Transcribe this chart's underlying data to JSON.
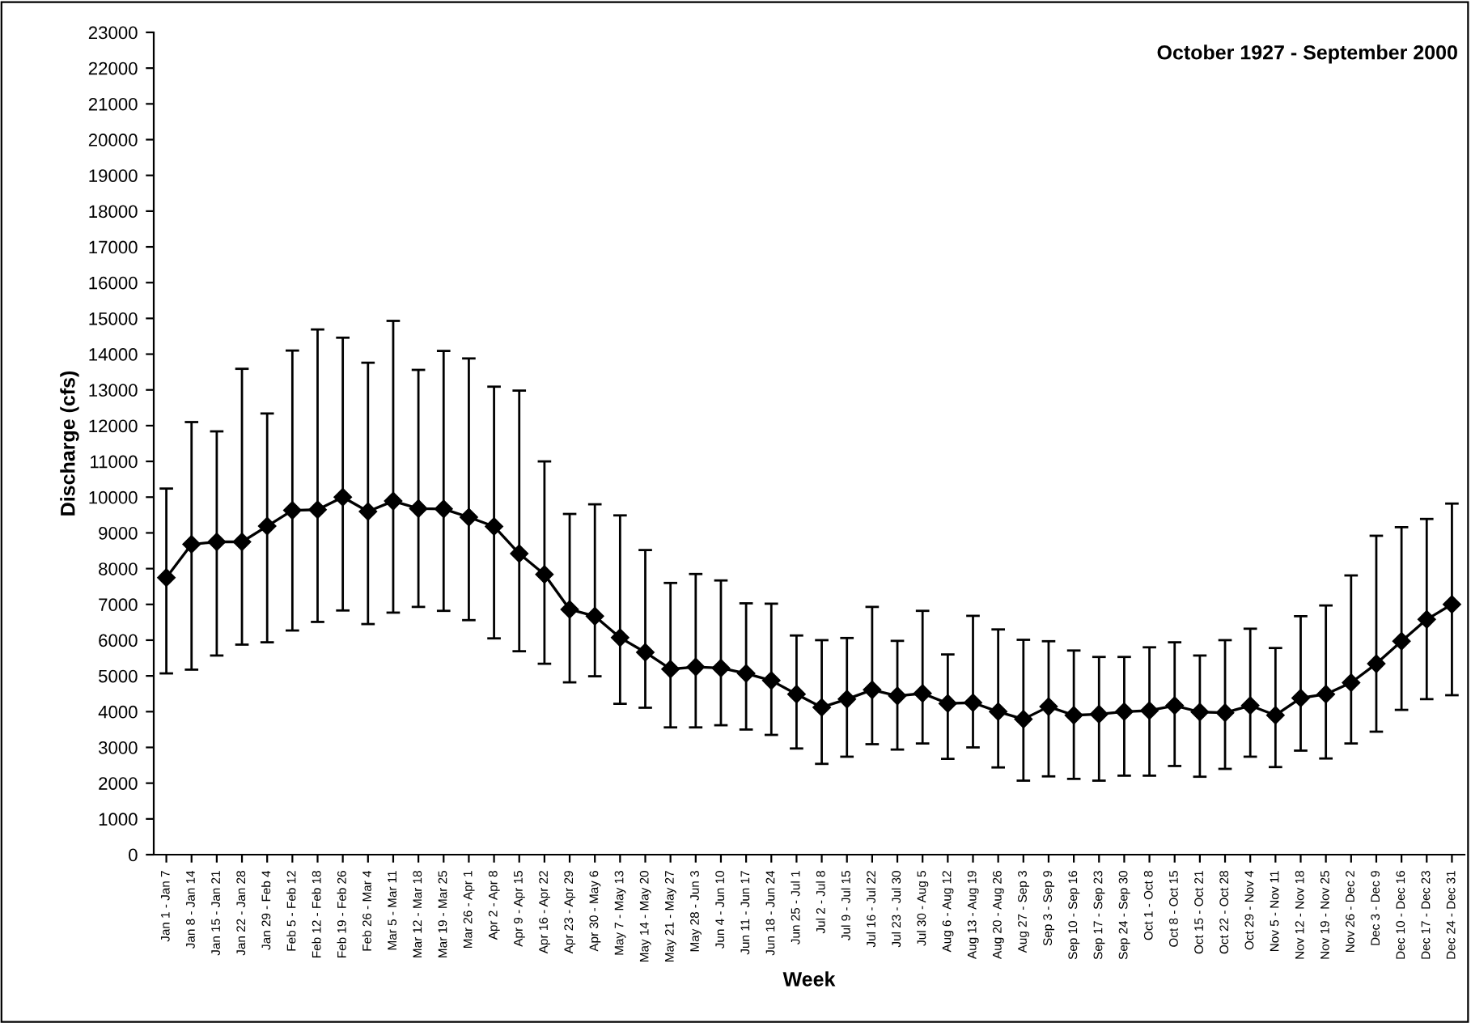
{
  "chart_data": {
    "type": "line",
    "title": "October 1927 - September 2000",
    "xlabel": "Week",
    "ylabel": "Discharge (cfs)",
    "categories": [
      "Jan 1 - Jan 7",
      "Jan 8 - Jan 14",
      "Jan 15 - Jan 21",
      "Jan 22 - Jan 28",
      "Jan 29 - Feb 4",
      "Feb 5 - Feb 12",
      "Feb 12 - Feb 18",
      "Feb 19 - Feb 26",
      "Feb 26 - Mar 4",
      "Mar 5 - Mar 11",
      "Mar 12 - Mar 18",
      "Mar 19 - Mar 25",
      "Mar 26 - Apr 1",
      "Apr 2 - Apr 8",
      "Apr 9 - Apr 15",
      "Apr 16 - Apr 22",
      "Apr 23 - Apr 29",
      "Apr 30 - May 6",
      "May 7 - May 13",
      "May 14 - May 20",
      "May 21 - May 27",
      "May 28 - Jun 3",
      "Jun 4 - Jun 10",
      "Jun 11 - Jun 17",
      "Jun 18 - Jun 24",
      "Jun 25 - Jul 1",
      "Jul 2 - Jul 8",
      "Jul 9 - Jul 15",
      "Jul 16 - Jul 22",
      "Jul 23 - Jul 30",
      "Jul 30 - Aug 5",
      "Aug 6 - Aug 12",
      "Aug 13 - Aug 19",
      "Aug 20 - Aug 26",
      "Aug 27 - Sep 3",
      "Sep 3 - Sep 9",
      "Sep 10 - Sep 16",
      "Sep 17 - Sep 23",
      "Sep 24 - Sep 30",
      "Oct 1 - Oct 8",
      "Oct 8 - Oct 15",
      "Oct 15 - Oct 21",
      "Oct 22 - Oct 28",
      "Oct 29 - Nov 4",
      "Nov 5 - Nov 11",
      "Nov 12 - Nov 18",
      "Nov 19 - Nov 25",
      "Nov 26 - Dec 2",
      "Dec 3 - Dec 9",
      "Dec 10 - Dec 16",
      "Dec 17 - Dec 23",
      "Dec 24 - Dec 31"
    ],
    "series": [
      {
        "color": "#000000",
        "values": [
          7750,
          8680,
          8750,
          8750,
          9190,
          9630,
          9650,
          10000,
          9600,
          9890,
          9680,
          9670,
          9440,
          9180,
          8420,
          7840,
          6860,
          6670,
          6070,
          5660,
          5190,
          5250,
          5220,
          5070,
          4870,
          4490,
          4120,
          4350,
          4610,
          4440,
          4510,
          4230,
          4250,
          4000,
          3790,
          4140,
          3900,
          3930,
          4000,
          4030,
          4170,
          3990,
          3970,
          4170,
          3900,
          4380,
          4490,
          4810,
          5340,
          5970,
          6580,
          7000
        ],
        "errors": [
          [
            5070,
            10240
          ],
          [
            5175,
            12100
          ],
          [
            5570,
            11840
          ],
          [
            5875,
            13590
          ],
          [
            5940,
            12340
          ],
          [
            6270,
            14100
          ],
          [
            6510,
            14690
          ],
          [
            6830,
            14460
          ],
          [
            6450,
            13760
          ],
          [
            6770,
            14930
          ],
          [
            6930,
            13560
          ],
          [
            6820,
            14090
          ],
          [
            6560,
            13880
          ],
          [
            6050,
            13090
          ],
          [
            5690,
            12980
          ],
          [
            5340,
            11000
          ],
          [
            4820,
            9530
          ],
          [
            4990,
            9800
          ],
          [
            4220,
            9490
          ],
          [
            4110,
            8520
          ],
          [
            3560,
            7600
          ],
          [
            3560,
            7850
          ],
          [
            3620,
            7670
          ],
          [
            3500,
            7030
          ],
          [
            3350,
            7020
          ],
          [
            2970,
            6130
          ],
          [
            2540,
            6000
          ],
          [
            2740,
            6060
          ],
          [
            3090,
            6930
          ],
          [
            2940,
            5980
          ],
          [
            3110,
            6820
          ],
          [
            2680,
            5600
          ],
          [
            3000,
            6680
          ],
          [
            2440,
            6300
          ],
          [
            2070,
            6010
          ],
          [
            2190,
            5970
          ],
          [
            2120,
            5710
          ],
          [
            2070,
            5530
          ],
          [
            2210,
            5530
          ],
          [
            2210,
            5800
          ],
          [
            2480,
            5940
          ],
          [
            2180,
            5570
          ],
          [
            2400,
            6000
          ],
          [
            2740,
            6320
          ],
          [
            2450,
            5780
          ],
          [
            2910,
            6670
          ],
          [
            2690,
            6970
          ],
          [
            3110,
            7810
          ],
          [
            3440,
            8920
          ],
          [
            4050,
            9160
          ],
          [
            4350,
            9390
          ],
          [
            4460,
            9820
          ]
        ]
      }
    ],
    "ylim": [
      0,
      23000
    ],
    "yticks": [
      0,
      1000,
      2000,
      3000,
      4000,
      5000,
      6000,
      7000,
      8000,
      9000,
      10000,
      11000,
      12000,
      13000,
      14000,
      15000,
      16000,
      17000,
      18000,
      19000,
      20000,
      21000,
      22000,
      23000
    ],
    "marker": "diamond",
    "line_style": "solid",
    "grid": false,
    "legend": false
  }
}
